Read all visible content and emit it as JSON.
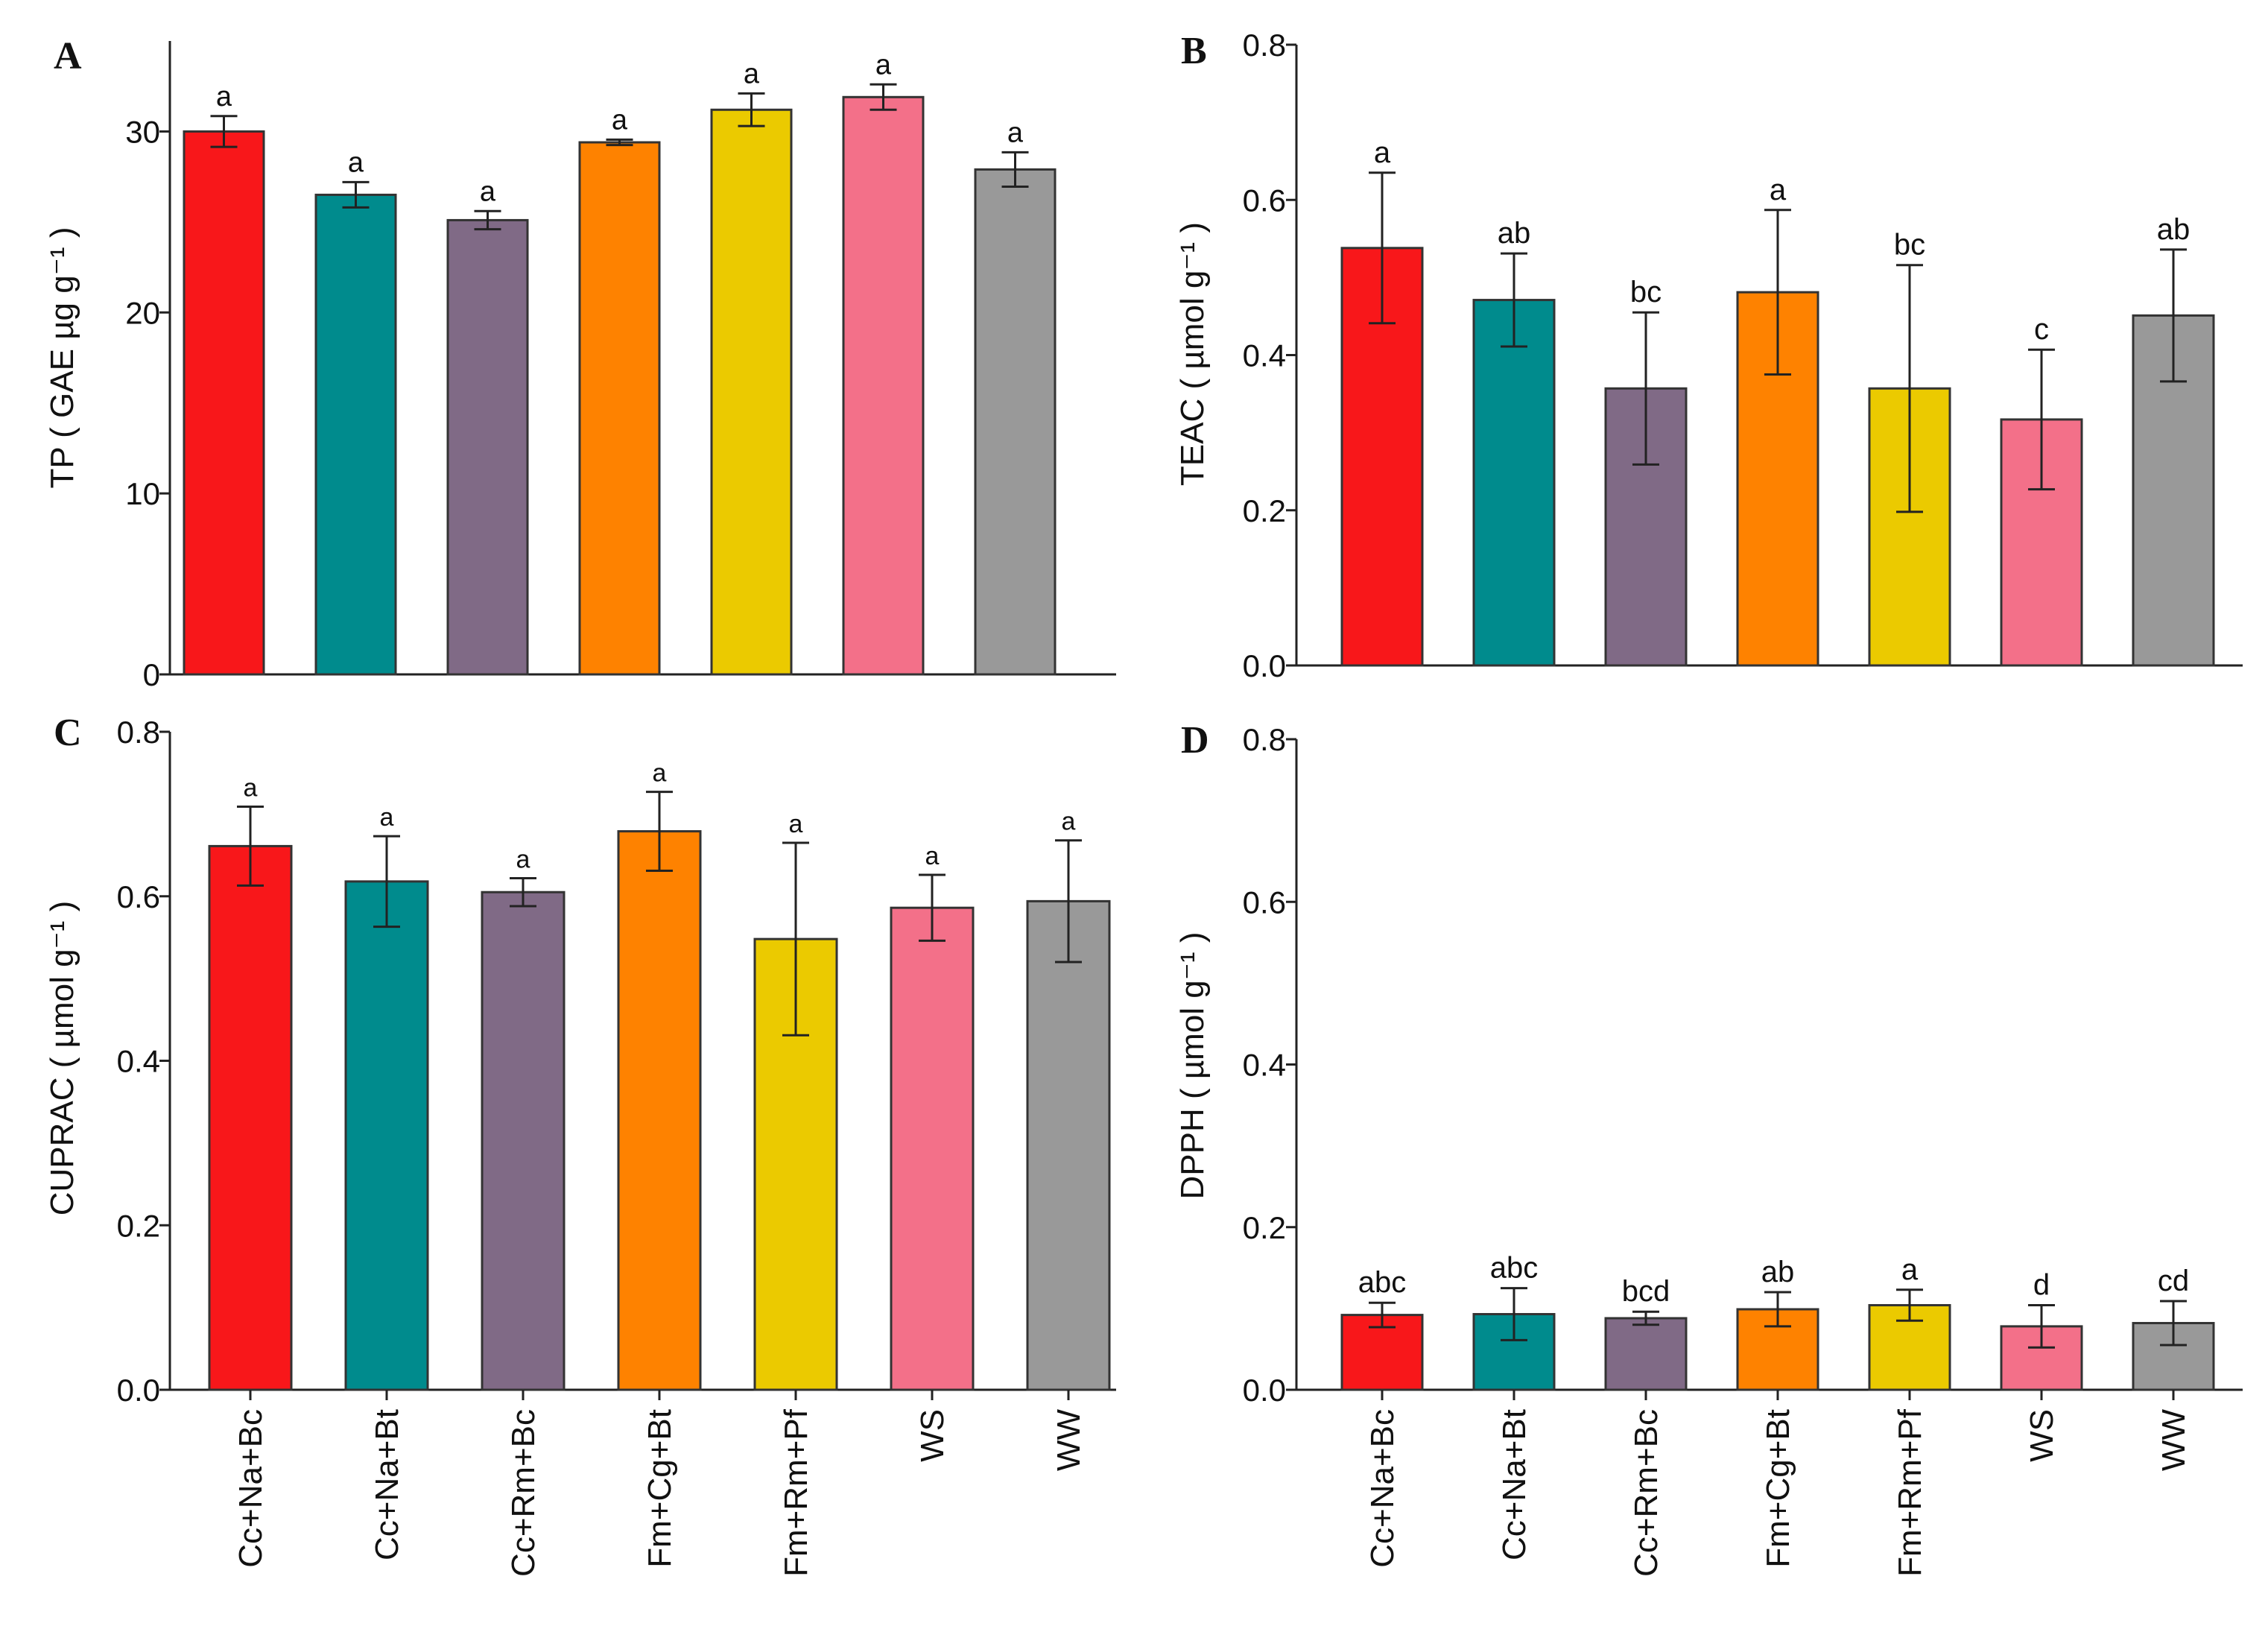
{
  "figure": {
    "categories": [
      "Cc+Na+Bc",
      "Cc+Na+Bt",
      "Cc+Rm+Bc",
      "Fm+Cg+Bt",
      "Fm+Rm+Pf",
      "WS",
      "WW"
    ],
    "colors": [
      "#f8171a",
      "#008b8d",
      "#806a86",
      "#fe8200",
      "#ebca00",
      "#f37089",
      "#999999"
    ]
  },
  "chart_data": [
    {
      "panel": "A",
      "type": "bar",
      "ylabel": "TP ( GAE µg g⁻¹ )",
      "ylim": [
        0,
        35
      ],
      "yticks": [
        0,
        10,
        20,
        30
      ],
      "ytick_labels": [
        "0",
        "10",
        "20",
        "30"
      ],
      "categories": [
        "Cc+Na+Bc",
        "Cc+Na+Bt",
        "Cc+Rm+Bc",
        "Fm+Cg+Bt",
        "Fm+Rm+Pf",
        "WS",
        "WW"
      ],
      "values": [
        30.0,
        26.5,
        25.1,
        29.4,
        31.2,
        31.9,
        27.9
      ],
      "errors": [
        0.85,
        0.7,
        0.5,
        0.15,
        0.9,
        0.7,
        0.95
      ],
      "letters": [
        "a",
        "a",
        "a",
        "a",
        "a",
        "a",
        "a"
      ],
      "show_xticks": false
    },
    {
      "panel": "B",
      "type": "bar",
      "ylabel": "TEAC ( µmol g⁻¹ )",
      "ylim": [
        0,
        0.8
      ],
      "yticks": [
        0,
        0.2,
        0.4,
        0.6,
        0.8
      ],
      "ytick_labels": [
        "0.0",
        "0.2",
        "0.4",
        "0.6",
        "0.8"
      ],
      "categories": [
        "Cc+Na+Bc",
        "Cc+Na+Bt",
        "Cc+Rm+Bc",
        "Fm+Cg+Bt",
        "Fm+Rm+Pf",
        "WS",
        "WW"
      ],
      "values": [
        0.538,
        0.471,
        0.357,
        0.481,
        0.357,
        0.317,
        0.451
      ],
      "errors": [
        0.097,
        0.06,
        0.098,
        0.106,
        0.159,
        0.09,
        0.085
      ],
      "letters": [
        "a",
        "ab",
        "bc",
        "a",
        "bc",
        "c",
        "ab"
      ],
      "show_xticks": false
    },
    {
      "panel": "C",
      "type": "bar",
      "ylabel": "CUPRAC ( µmol g⁻¹ )",
      "ylim": [
        0,
        0.8
      ],
      "yticks": [
        0,
        0.2,
        0.4,
        0.6,
        0.8
      ],
      "ytick_labels": [
        "0.0",
        "0.2",
        "0.4",
        "0.6",
        "0.8"
      ],
      "categories": [
        "Cc+Na+Bc",
        "Cc+Na+Bt",
        "Cc+Rm+Bc",
        "Fm+Cg+Bt",
        "Fm+Rm+Pf",
        "WS",
        "WW"
      ],
      "values": [
        0.661,
        0.618,
        0.605,
        0.679,
        0.548,
        0.586,
        0.594
      ],
      "errors": [
        0.048,
        0.055,
        0.017,
        0.048,
        0.117,
        0.04,
        0.074
      ],
      "letters": [
        "a",
        "a",
        "a",
        "a",
        "a",
        "a",
        "a"
      ],
      "show_xticks": true
    },
    {
      "panel": "D",
      "type": "bar",
      "ylabel": "DPPH ( µmol g⁻¹ )",
      "ylim": [
        0,
        0.8
      ],
      "yticks": [
        0,
        0.2,
        0.4,
        0.6,
        0.8
      ],
      "ytick_labels": [
        "0.0",
        "0.2",
        "0.4",
        "0.6",
        "0.8"
      ],
      "categories": [
        "Cc+Na+Bc",
        "Cc+Na+Bt",
        "Cc+Rm+Bc",
        "Fm+Cg+Bt",
        "Fm+Rm+Pf",
        "WS",
        "WW"
      ],
      "values": [
        0.092,
        0.093,
        0.088,
        0.099,
        0.104,
        0.078,
        0.082
      ],
      "errors": [
        0.015,
        0.032,
        0.008,
        0.021,
        0.019,
        0.026,
        0.027
      ],
      "letters": [
        "abc",
        "abc",
        "bcd",
        "ab",
        "a",
        "d",
        "cd"
      ],
      "show_xticks": true
    }
  ]
}
